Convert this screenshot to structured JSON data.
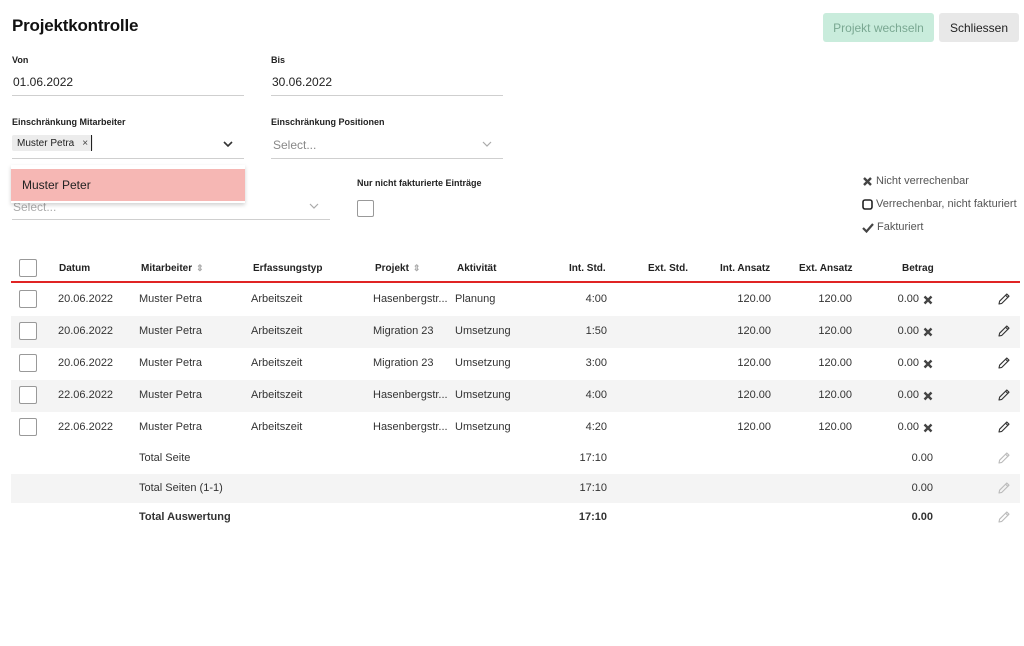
{
  "page": {
    "title": "Projektkontrolle",
    "switch_label": "Projekt wechseln",
    "close_label": "Schliessen"
  },
  "filters": {
    "von_label": "Von",
    "von_value": "01.06.2022",
    "bis_label": "Bis",
    "bis_value": "30.06.2022",
    "mitarbeiter_label": "Einschränkung Mitarbeiter",
    "mitarbeiter_chip": "Muster Petra",
    "chip_remove": "×",
    "positionen_label": "Einschränkung Positionen",
    "positionen_placeholder": "Select...",
    "third_placeholder": "Select...",
    "nur_label": "Nur nicht fakturierte Einträge",
    "dropdown_option": "Muster Peter"
  },
  "legend": {
    "nicht": "Nicht verrechenbar",
    "verrechenbar": "Verrechenbar, nicht fakturiert",
    "fakturiert": "Fakturiert"
  },
  "table": {
    "headers": {
      "datum": "Datum",
      "mitarbeiter": "Mitarbeiter",
      "erfassungstyp": "Erfassungstyp",
      "projekt": "Projekt",
      "aktivitaet": "Aktivität",
      "int_std": "Int. Std.",
      "ext_std": "Ext. Std.",
      "int_ansatz": "Int. Ansatz",
      "ext_ansatz": "Ext. Ansatz",
      "betrag": "Betrag"
    },
    "rows": [
      {
        "datum": "20.06.2022",
        "mitarbeiter": "Muster Petra",
        "typ": "Arbeitszeit",
        "projekt": "Hasenbergstr...",
        "aktivitaet": "Planung",
        "int_std": "4:00",
        "ext_std": "",
        "int_ansatz": "120.00",
        "ext_ansatz": "120.00",
        "betrag": "0.00"
      },
      {
        "datum": "20.06.2022",
        "mitarbeiter": "Muster Petra",
        "typ": "Arbeitszeit",
        "projekt": "Migration 23",
        "aktivitaet": "Umsetzung",
        "int_std": "1:50",
        "ext_std": "",
        "int_ansatz": "120.00",
        "ext_ansatz": "120.00",
        "betrag": "0.00"
      },
      {
        "datum": "20.06.2022",
        "mitarbeiter": "Muster Petra",
        "typ": "Arbeitszeit",
        "projekt": "Migration 23",
        "aktivitaet": "Umsetzung",
        "int_std": "3:00",
        "ext_std": "",
        "int_ansatz": "120.00",
        "ext_ansatz": "120.00",
        "betrag": "0.00"
      },
      {
        "datum": "22.06.2022",
        "mitarbeiter": "Muster Petra",
        "typ": "Arbeitszeit",
        "projekt": "Hasenbergstr...",
        "aktivitaet": "Umsetzung",
        "int_std": "4:00",
        "ext_std": "",
        "int_ansatz": "120.00",
        "ext_ansatz": "120.00",
        "betrag": "0.00"
      },
      {
        "datum": "22.06.2022",
        "mitarbeiter": "Muster Petra",
        "typ": "Arbeitszeit",
        "projekt": "Hasenbergstr...",
        "aktivitaet": "Umsetzung",
        "int_std": "4:20",
        "ext_std": "",
        "int_ansatz": "120.00",
        "ext_ansatz": "120.00",
        "betrag": "0.00"
      }
    ],
    "totals": [
      {
        "label": "Total Seite",
        "int_std": "17:10",
        "betrag": "0.00"
      },
      {
        "label": "Total Seiten (1-1)",
        "int_std": "17:10",
        "betrag": "0.00"
      },
      {
        "label": "Total Auswertung",
        "int_std": "17:10",
        "betrag": "0.00"
      }
    ]
  },
  "colors": {
    "accent_red": "#e02424",
    "dropdown_highlight": "#f6b7b4",
    "switch_button_bg": "#c9ecdc"
  },
  "icons": {
    "row_status": "x-mark-icon",
    "row_action": "pencil-icon",
    "select_arrow": "chevron-down-icon"
  }
}
